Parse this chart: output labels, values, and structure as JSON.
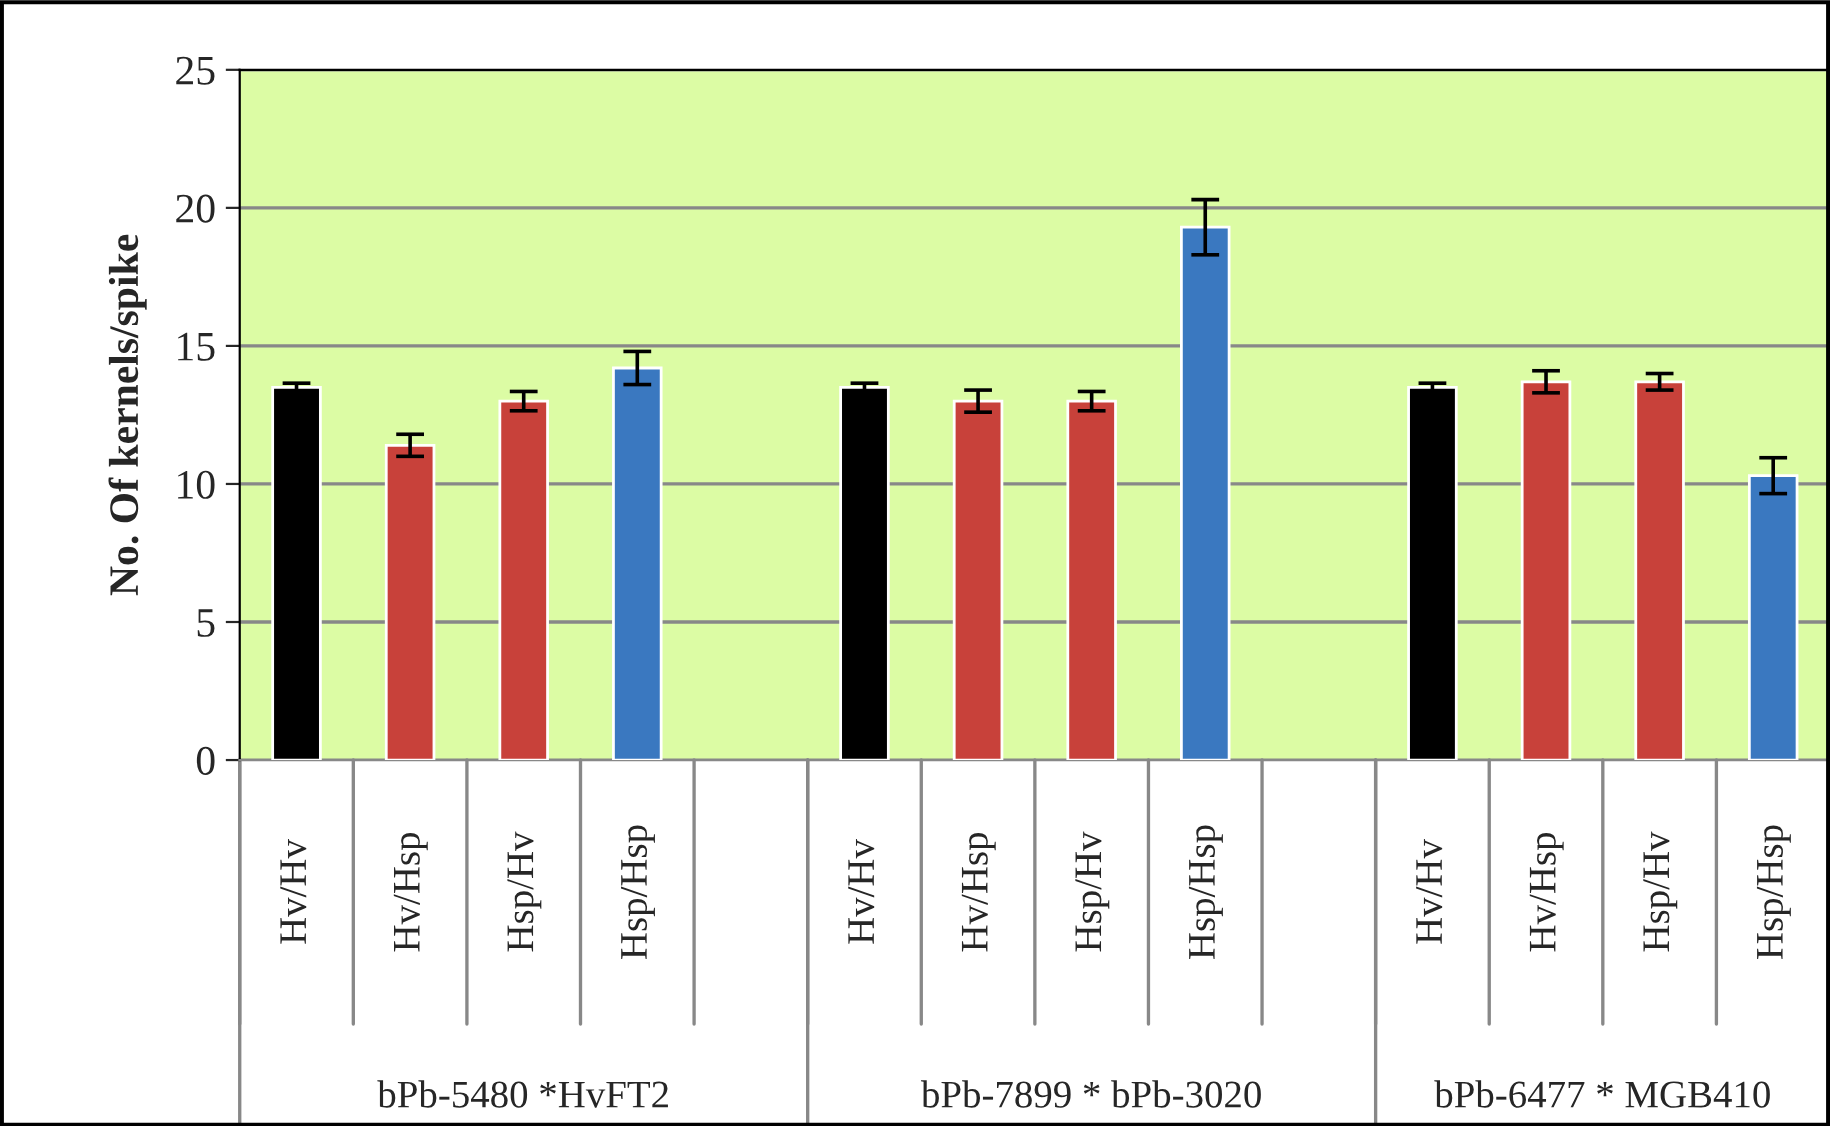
{
  "chart_data": {
    "type": "bar",
    "ylabel": "No. Of kernels/spike",
    "categories": [
      "Hv/Hv",
      "Hv/Hsp",
      "Hsp/Hv",
      "Hsp/Hsp",
      null,
      "Hv/Hv",
      "Hv/Hsp",
      "Hsp/Hv",
      "Hsp/Hsp",
      null,
      "Hv/Hv",
      "Hv/Hsp",
      "Hsp/Hv",
      "Hsp/Hsp"
    ],
    "values": [
      13.5,
      11.4,
      13.0,
      14.2,
      null,
      13.5,
      13.0,
      13.0,
      19.3,
      null,
      13.5,
      13.7,
      13.7,
      10.3
    ],
    "errors": [
      0.15,
      0.4,
      0.35,
      0.6,
      null,
      0.15,
      0.4,
      0.35,
      1.0,
      null,
      0.15,
      0.4,
      0.3,
      0.65
    ],
    "colors": [
      "#000000",
      "#c8413a",
      "#c8413a",
      "#3a78c0",
      null,
      "#000000",
      "#c8413a",
      "#c8413a",
      "#3a78c0",
      null,
      "#000000",
      "#c8413a",
      "#c8413a",
      "#3a78c0"
    ],
    "annotations": [
      "bPb-5480 *HvFT2",
      "bPb-7899 * bPb-3020",
      "bPb-6477 * MGB410"
    ],
    "ylim": [
      0,
      25
    ],
    "yticks": [
      0,
      5,
      10,
      15,
      20,
      25
    ],
    "grid": "y",
    "legend": false
  }
}
